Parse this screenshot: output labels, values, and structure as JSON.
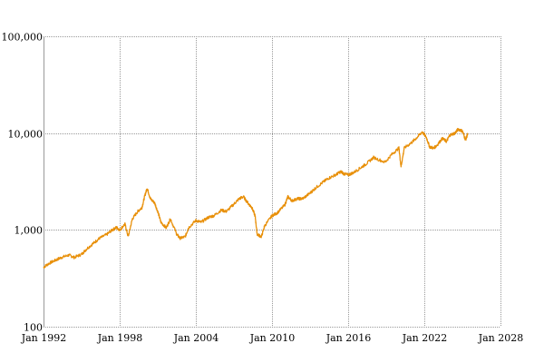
{
  "chart_data": {
    "type": "line",
    "title": "",
    "xlabel": "",
    "ylabel": "",
    "y_scale": "log",
    "ylim": [
      100,
      100000
    ],
    "xlim": [
      "1992-01",
      "2028-01"
    ],
    "grid": true,
    "legend": "none",
    "line_color": "#e8900a",
    "y_ticks": [
      {
        "value": 100,
        "label": "100"
      },
      {
        "value": 1000,
        "label": "1,000"
      },
      {
        "value": 10000,
        "label": "10,000"
      },
      {
        "value": 100000,
        "label": "100,000"
      }
    ],
    "x_ticks": [
      {
        "value": "1992-01",
        "label": "Jan 1992"
      },
      {
        "value": "1998-01",
        "label": "Jan 1998"
      },
      {
        "value": "2004-01",
        "label": "Jan 2004"
      },
      {
        "value": "2010-01",
        "label": "Jan 2010"
      },
      {
        "value": "2016-01",
        "label": "Jan 2016"
      },
      {
        "value": "2022-01",
        "label": "Jan 2022"
      },
      {
        "value": "2028-01",
        "label": "Jan 2028"
      }
    ],
    "series": [
      {
        "points": [
          [
            "1992-01",
            410
          ],
          [
            "1992-06",
            450
          ],
          [
            "1993-01",
            490
          ],
          [
            "1993-06",
            520
          ],
          [
            "1994-01",
            550
          ],
          [
            "1994-06",
            520
          ],
          [
            "1995-01",
            560
          ],
          [
            "1995-06",
            640
          ],
          [
            "1996-01",
            740
          ],
          [
            "1996-06",
            820
          ],
          [
            "1997-01",
            900
          ],
          [
            "1997-06",
            1000
          ],
          [
            "1997-10",
            1060
          ],
          [
            "1998-01",
            1000
          ],
          [
            "1998-06",
            1150
          ],
          [
            "1998-09",
            850
          ],
          [
            "1999-01",
            1300
          ],
          [
            "1999-06",
            1550
          ],
          [
            "1999-10",
            1700
          ],
          [
            "2000-01",
            2300
          ],
          [
            "2000-03",
            2700
          ],
          [
            "2000-06",
            2100
          ],
          [
            "2000-10",
            1900
          ],
          [
            "2001-01",
            1550
          ],
          [
            "2001-04",
            1200
          ],
          [
            "2001-09",
            1050
          ],
          [
            "2002-01",
            1300
          ],
          [
            "2002-07",
            900
          ],
          [
            "2002-10",
            820
          ],
          [
            "2003-03",
            850
          ],
          [
            "2003-06",
            1050
          ],
          [
            "2004-01",
            1250
          ],
          [
            "2004-06",
            1200
          ],
          [
            "2005-01",
            1350
          ],
          [
            "2005-06",
            1400
          ],
          [
            "2006-01",
            1600
          ],
          [
            "2006-06",
            1550
          ],
          [
            "2007-01",
            1850
          ],
          [
            "2007-06",
            2100
          ],
          [
            "2007-10",
            2200
          ],
          [
            "2008-03",
            1850
          ],
          [
            "2008-06",
            1700
          ],
          [
            "2008-09",
            1400
          ],
          [
            "2008-11",
            900
          ],
          [
            "2009-03",
            850
          ],
          [
            "2009-06",
            1100
          ],
          [
            "2010-01",
            1400
          ],
          [
            "2010-06",
            1500
          ],
          [
            "2011-01",
            1800
          ],
          [
            "2011-04",
            2200
          ],
          [
            "2011-08",
            2000
          ],
          [
            "2012-01",
            2100
          ],
          [
            "2012-06",
            2100
          ],
          [
            "2013-01",
            2400
          ],
          [
            "2013-06",
            2700
          ],
          [
            "2014-01",
            3100
          ],
          [
            "2014-06",
            3400
          ],
          [
            "2015-01",
            3700
          ],
          [
            "2015-06",
            4000
          ],
          [
            "2015-09",
            3800
          ],
          [
            "2016-01",
            3700
          ],
          [
            "2016-06",
            3900
          ],
          [
            "2017-01",
            4400
          ],
          [
            "2017-06",
            4800
          ],
          [
            "2018-01",
            5600
          ],
          [
            "2018-12",
            5000
          ],
          [
            "2019-06",
            6000
          ],
          [
            "2020-01",
            7000
          ],
          [
            "2020-03",
            4500
          ],
          [
            "2020-06",
            7000
          ],
          [
            "2021-01",
            8000
          ],
          [
            "2021-06",
            9000
          ],
          [
            "2021-11",
            10300
          ],
          [
            "2022-03",
            9000
          ],
          [
            "2022-06",
            7200
          ],
          [
            "2022-10",
            7000
          ],
          [
            "2023-01",
            7500
          ],
          [
            "2023-06",
            8800
          ],
          [
            "2023-10",
            8200
          ],
          [
            "2024-01",
            9500
          ],
          [
            "2024-06",
            10000
          ],
          [
            "2024-09",
            11000
          ],
          [
            "2025-01",
            10500
          ],
          [
            "2025-04",
            8500
          ],
          [
            "2025-06",
            9800
          ]
        ]
      }
    ]
  }
}
